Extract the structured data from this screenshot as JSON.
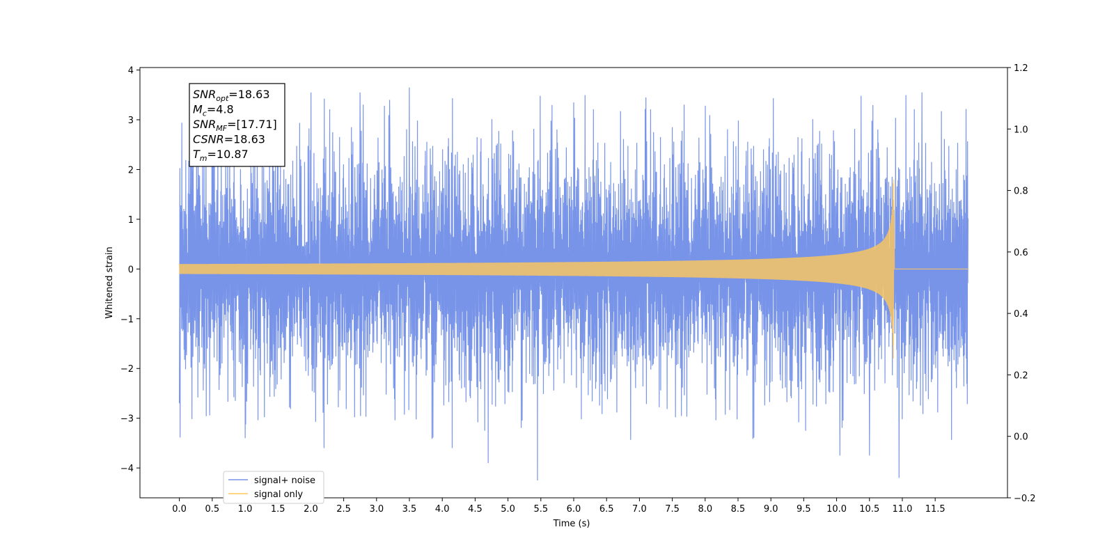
{
  "chart_data": {
    "type": "line",
    "xlabel": "Time (s)",
    "ylabel": "Whitened strain",
    "xlim": [
      -0.6,
      12.6
    ],
    "ylim": [
      -4.6,
      4.05
    ],
    "ylim_right": [
      -0.2,
      1.2
    ],
    "x_ticks": [
      "0.0",
      "0.5",
      "1.0",
      "1.5",
      "2.0",
      "2.5",
      "3.0",
      "3.5",
      "4.0",
      "4.5",
      "5.0",
      "5.5",
      "6.0",
      "6.5",
      "7.0",
      "7.5",
      "8.0",
      "8.5",
      "9.0",
      "9.5",
      "10.0",
      "10.5",
      "11.0",
      "11.5"
    ],
    "y_ticks_left": [
      "4",
      "3",
      "2",
      "1",
      "0",
      "−1",
      "−2",
      "−3",
      "−4"
    ],
    "y_ticks_right": [
      "1.2",
      "1.0",
      "0.8",
      "0.6",
      "0.4",
      "0.2",
      "0.0",
      "−0.2"
    ],
    "grid": false,
    "legend_position": "lower-left",
    "series": [
      {
        "name": "signal+ noise",
        "color": "#7894e8",
        "x_range": [
          0.0,
          12.0
        ],
        "typical_envelope": [
          -1.5,
          1.5
        ],
        "peaks": [
          {
            "x": 0.0,
            "y": 2.5
          },
          {
            "x": 0.0,
            "y": -2.7
          },
          {
            "x": 1.0,
            "y": -3.4
          },
          {
            "x": 2.2,
            "y": -3.6
          },
          {
            "x": 2.75,
            "y": 3.55
          },
          {
            "x": 3.2,
            "y": 3.4
          },
          {
            "x": 3.5,
            "y": 3.65
          },
          {
            "x": 4.15,
            "y": -3.6
          },
          {
            "x": 4.7,
            "y": -3.9
          },
          {
            "x": 5.45,
            "y": -4.25
          },
          {
            "x": 6.0,
            "y": 3.35
          },
          {
            "x": 7.1,
            "y": 3.45
          },
          {
            "x": 10.05,
            "y": -3.75
          },
          {
            "x": 10.5,
            "y": -3.75
          },
          {
            "x": 10.95,
            "y": -4.2
          },
          {
            "x": 11.3,
            "y": 3.55
          }
        ]
      },
      {
        "name": "signal only",
        "color": "#ffc75a",
        "x_range": [
          0.0,
          10.87
        ],
        "merger_time": 10.87,
        "amplitude_start": 0.1,
        "amplitude_peak": 1.8
      }
    ],
    "annotation": {
      "lines": [
        {
          "base": "SNR",
          "sub": "opt",
          "value": "=18.63"
        },
        {
          "base": "M",
          "sub": "c",
          "value": "=4.8"
        },
        {
          "base": "SNR",
          "sub": "MF",
          "value": "=[17.71]"
        },
        {
          "base": "CSNR",
          "sub": "",
          "value": "=18.63"
        },
        {
          "base": "T",
          "sub": "m",
          "value": "=10.87"
        }
      ]
    }
  }
}
